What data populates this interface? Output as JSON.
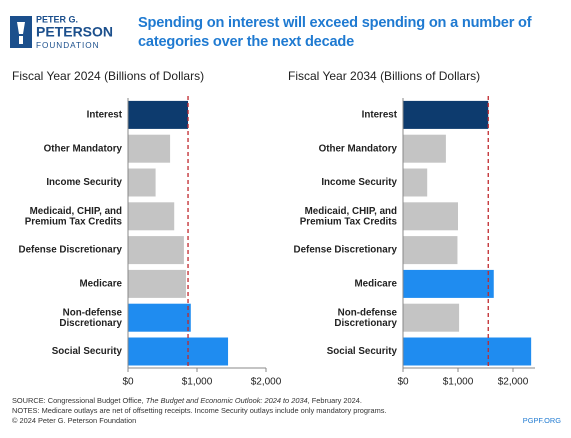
{
  "logo": [
    "PETER G.",
    "PETERSON",
    "FOUNDATION"
  ],
  "title": "Spending on interest will exceed spending on a number of categories over the next decade",
  "chart_data": [
    {
      "type": "barh",
      "title": "Fiscal Year 2024 (Billions of Dollars)",
      "categories": [
        "Interest",
        "Other Mandatory",
        "Income Security",
        "Medicaid, CHIP, and Premium Tax Credits",
        "Defense Discretionary",
        "Medicare",
        "Non-defense Discretionary",
        "Social Security"
      ],
      "values": [
        870,
        610,
        400,
        670,
        810,
        840,
        910,
        1450
      ],
      "colors": [
        "#0d3b6e",
        "#c4c4c4",
        "#c4c4c4",
        "#c4c4c4",
        "#c4c4c4",
        "#c4c4c4",
        "#1f8cf0",
        "#1f8cf0"
      ],
      "xlim": [
        0,
        2000
      ],
      "xticks": [
        {
          "value": 0,
          "label": "$0"
        },
        {
          "value": 1000,
          "label": "$1,000"
        },
        {
          "value": 2000,
          "label": "$2,000"
        }
      ],
      "reference_line_color": "#c0282d"
    },
    {
      "type": "barh",
      "title": "Fiscal Year 2034 (Billions of Dollars)",
      "categories": [
        "Interest",
        "Other Mandatory",
        "Income Security",
        "Medicaid, CHIP, and Premium Tax Credits",
        "Defense Discretionary",
        "Medicare",
        "Non-defense Discretionary",
        "Social Security"
      ],
      "values": [
        1550,
        780,
        440,
        1000,
        990,
        1650,
        1020,
        2330
      ],
      "colors": [
        "#0d3b6e",
        "#c4c4c4",
        "#c4c4c4",
        "#c4c4c4",
        "#c4c4c4",
        "#1f8cf0",
        "#c4c4c4",
        "#1f8cf0"
      ],
      "xlim": [
        0,
        2400
      ],
      "xticks": [
        {
          "value": 0,
          "label": "$0"
        },
        {
          "value": 1000,
          "label": "$1,000"
        },
        {
          "value": 2000,
          "label": "$2,000"
        }
      ],
      "reference_line_color": "#c0282d"
    }
  ],
  "footer": {
    "source": [
      "SOURCE: Congressional Budget Office, ",
      "The Budget and Economic Outlook: 2024 to 2034",
      ", February 2024."
    ],
    "notes": "NOTES: Medicare outlays are net of offsetting receipts. Income Security outlays include only mandatory programs.",
    "copyright": "© 2024 Peter G. Peterson Foundation",
    "url": "PGPF.ORG"
  }
}
